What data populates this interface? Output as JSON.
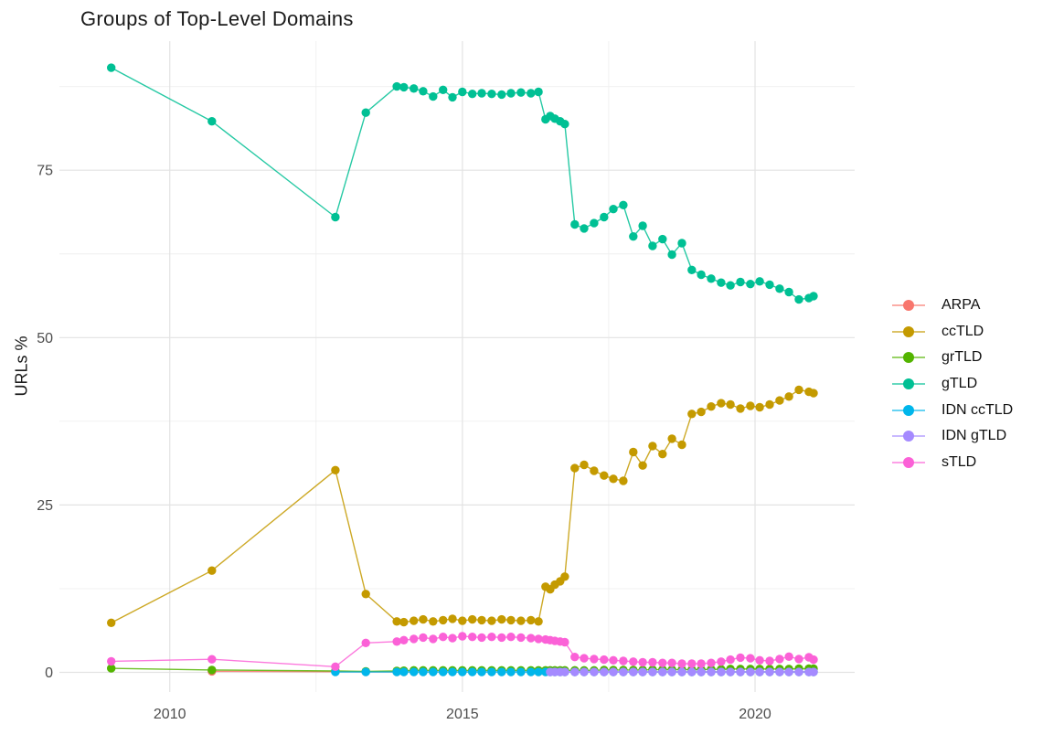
{
  "chart": {
    "background": "#ffffff",
    "grid_major_color": "#e3e3e3",
    "grid_minor_color": "#efefef",
    "axis_text_color": "#4d4d4d",
    "title_color": "#1a1a1a"
  },
  "chart_data": {
    "type": "line",
    "title": "Groups of Top-Level Domains",
    "xlabel": "",
    "ylabel": "URLs %",
    "grid": true,
    "marker": "point+line",
    "legend_position": "right",
    "x_axis": {
      "ticks": [
        2010,
        2015,
        2020
      ],
      "minor_ticks": [
        2012.5,
        2017.5
      ],
      "range": [
        2008.5,
        2021.5
      ]
    },
    "y_axis": {
      "ticks": [
        0,
        25,
        50,
        75
      ],
      "minor_ticks": [
        12.5,
        37.5,
        62.5,
        87.5
      ],
      "range": [
        -3,
        93
      ]
    },
    "x": [
      2009.0,
      2010.72,
      2012.83,
      2013.35,
      2013.88,
      2014.0,
      2014.17,
      2014.33,
      2014.5,
      2014.67,
      2014.83,
      2015.0,
      2015.17,
      2015.33,
      2015.5,
      2015.67,
      2015.83,
      2016.0,
      2016.17,
      2016.3,
      2016.42,
      2016.5,
      2016.58,
      2016.67,
      2016.75,
      2016.92,
      2017.08,
      2017.25,
      2017.42,
      2017.58,
      2017.75,
      2017.92,
      2018.08,
      2018.25,
      2018.42,
      2018.58,
      2018.75,
      2018.92,
      2019.08,
      2019.25,
      2019.42,
      2019.58,
      2019.75,
      2019.92,
      2020.08,
      2020.25,
      2020.42,
      2020.58,
      2020.75,
      2020.92,
      2021.0
    ],
    "series": [
      {
        "name": "ARPA",
        "color": "#F8766D",
        "values": [
          null,
          0.15,
          0.1,
          0.08,
          0.08,
          0.08,
          0.08,
          0.08,
          0.08,
          0.08,
          0.08,
          0.08,
          0.08,
          0.08,
          0.08,
          0.08,
          0.08,
          0.08,
          0.08,
          0.08,
          0.08,
          0.08,
          0.08,
          0.08,
          0.08,
          0.08,
          0.08,
          0.08,
          0.08,
          0.08,
          0.08,
          0.08,
          0.08,
          0.08,
          0.08,
          0.08,
          0.08,
          0.08,
          0.08,
          0.08,
          0.08,
          0.08,
          0.08,
          0.08,
          0.08,
          0.08,
          0.08,
          0.08,
          0.08,
          0.08,
          0.08
        ]
      },
      {
        "name": "ccTLD",
        "color": "#C49A00",
        "values": [
          7.4,
          15.2,
          30.2,
          11.7,
          7.6,
          7.5,
          7.7,
          7.9,
          7.6,
          7.8,
          8.0,
          7.7,
          7.9,
          7.8,
          7.7,
          7.9,
          7.8,
          7.7,
          7.8,
          7.6,
          12.8,
          12.4,
          13.1,
          13.6,
          14.3,
          30.5,
          31.0,
          30.1,
          29.4,
          28.9,
          28.6,
          32.9,
          30.9,
          33.8,
          32.6,
          34.9,
          34.0,
          38.6,
          38.9,
          39.7,
          40.2,
          40.0,
          39.4,
          39.8,
          39.6,
          40.0,
          40.6,
          41.2,
          42.2,
          41.9,
          41.7
        ]
      },
      {
        "name": "grTLD",
        "color": "#53B400",
        "values": [
          0.6,
          0.35,
          0.2,
          0.15,
          0.2,
          0.25,
          0.3,
          0.3,
          0.3,
          0.3,
          0.3,
          0.3,
          0.3,
          0.3,
          0.3,
          0.3,
          0.3,
          0.3,
          0.3,
          0.3,
          0.3,
          0.3,
          0.3,
          0.3,
          0.3,
          0.3,
          0.3,
          0.3,
          0.35,
          0.35,
          0.35,
          0.35,
          0.35,
          0.4,
          0.4,
          0.4,
          0.4,
          0.4,
          0.4,
          0.45,
          0.45,
          0.5,
          0.5,
          0.5,
          0.5,
          0.5,
          0.5,
          0.5,
          0.55,
          0.55,
          0.55
        ]
      },
      {
        "name": "gTLD",
        "color": "#00C094",
        "values": [
          90.3,
          82.3,
          68.0,
          83.6,
          87.5,
          87.4,
          87.2,
          86.8,
          86.0,
          87.0,
          85.9,
          86.7,
          86.4,
          86.5,
          86.4,
          86.3,
          86.5,
          86.6,
          86.5,
          86.7,
          82.6,
          83.1,
          82.7,
          82.3,
          81.9,
          66.9,
          66.3,
          67.1,
          68.0,
          69.2,
          69.8,
          65.1,
          66.7,
          63.7,
          64.7,
          62.4,
          64.1,
          60.1,
          59.4,
          58.8,
          58.2,
          57.8,
          58.3,
          58.0,
          58.4,
          57.9,
          57.3,
          56.8,
          55.7,
          55.9,
          56.2
        ]
      },
      {
        "name": "IDN ccTLD",
        "color": "#00B6EB",
        "values": [
          null,
          null,
          0.05,
          0.05,
          0.05,
          0.05,
          0.05,
          0.05,
          0.05,
          0.05,
          0.05,
          0.05,
          0.05,
          0.05,
          0.05,
          0.05,
          0.05,
          0.05,
          0.05,
          0.05,
          0.05,
          0.05,
          0.05,
          0.05,
          0.05,
          0.05,
          0.05,
          0.05,
          0.05,
          0.05,
          0.05,
          0.05,
          0.05,
          0.05,
          0.05,
          0.05,
          0.05,
          0.05,
          0.05,
          0.05,
          0.05,
          0.05,
          0.05,
          0.05,
          0.05,
          0.05,
          0.05,
          0.05,
          0.05,
          0.05,
          0.05
        ]
      },
      {
        "name": "IDN gTLD",
        "color": "#A58AFF",
        "values": [
          null,
          null,
          null,
          null,
          null,
          null,
          null,
          null,
          null,
          null,
          null,
          null,
          null,
          null,
          null,
          null,
          null,
          null,
          null,
          null,
          null,
          0.05,
          0.05,
          0.05,
          0.05,
          0.05,
          0.05,
          0.05,
          0.05,
          0.05,
          0.05,
          0.05,
          0.05,
          0.05,
          0.05,
          0.05,
          0.05,
          0.05,
          0.05,
          0.05,
          0.05,
          0.05,
          0.05,
          0.05,
          0.05,
          0.05,
          0.05,
          0.05,
          0.05,
          0.05,
          0.05
        ]
      },
      {
        "name": "sTLD",
        "color": "#FB61D7",
        "values": [
          1.65,
          1.95,
          0.85,
          4.4,
          4.6,
          4.8,
          5.0,
          5.2,
          5.0,
          5.3,
          5.1,
          5.4,
          5.3,
          5.2,
          5.3,
          5.2,
          5.3,
          5.2,
          5.1,
          5.0,
          4.9,
          4.8,
          4.7,
          4.6,
          4.5,
          2.3,
          2.1,
          2.0,
          1.9,
          1.8,
          1.7,
          1.6,
          1.5,
          1.5,
          1.4,
          1.4,
          1.3,
          1.3,
          1.3,
          1.4,
          1.6,
          1.9,
          2.2,
          2.1,
          1.8,
          1.7,
          2.0,
          2.35,
          2.0,
          2.25,
          1.9
        ]
      }
    ]
  }
}
